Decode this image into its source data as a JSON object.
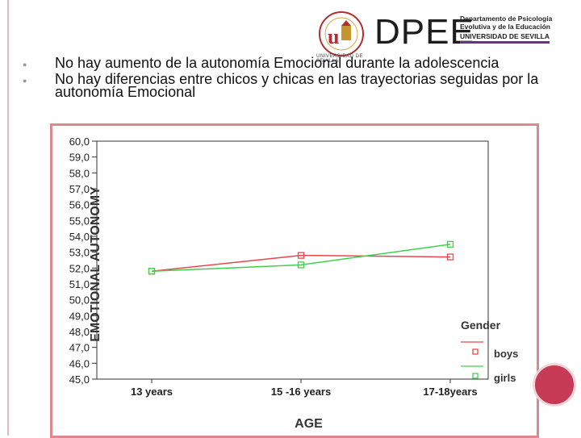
{
  "header": {
    "seal_text": "UNIVERSIDAD DE SEVILLA",
    "brand": "DPEE",
    "dept_line1": "Departamento de Psicología",
    "dept_line2": "Evolutiva y de la Educación",
    "dept_line3": "UNIVERSIDAD DE SEVILLA"
  },
  "bullets": [
    "No hay aumento de la autonomía Emocional durante la adolescencia",
    "No hay diferencias entre chicos y chicas en las trayectorias seguidas por la autonomía Emocional"
  ],
  "colors": {
    "boys": "#e8474c",
    "girls": "#3fd14a",
    "frame": "#e0878e",
    "accent": "#c63a56"
  },
  "chart_data": {
    "type": "line",
    "categories": [
      "13 years",
      "15 -16 years",
      "17-18years"
    ],
    "series": [
      {
        "name": "boys",
        "values": [
          51.8,
          52.8,
          52.7
        ]
      },
      {
        "name": "girls",
        "values": [
          51.8,
          52.2,
          53.5
        ]
      }
    ],
    "xlabel": "AGE",
    "ylabel": "EMOTIONAL AUTONOMY",
    "ylim": [
      45.0,
      60.0
    ],
    "yticks": [
      "45,0",
      "46,0",
      "47,0",
      "48,0",
      "49,0",
      "50,0",
      "51,0",
      "52,0",
      "53,0",
      "54,0",
      "55,0",
      "56,0",
      "57,0",
      "58,0",
      "59,0",
      "60,0"
    ],
    "legend_title": "Gender",
    "legend_position": "right"
  }
}
